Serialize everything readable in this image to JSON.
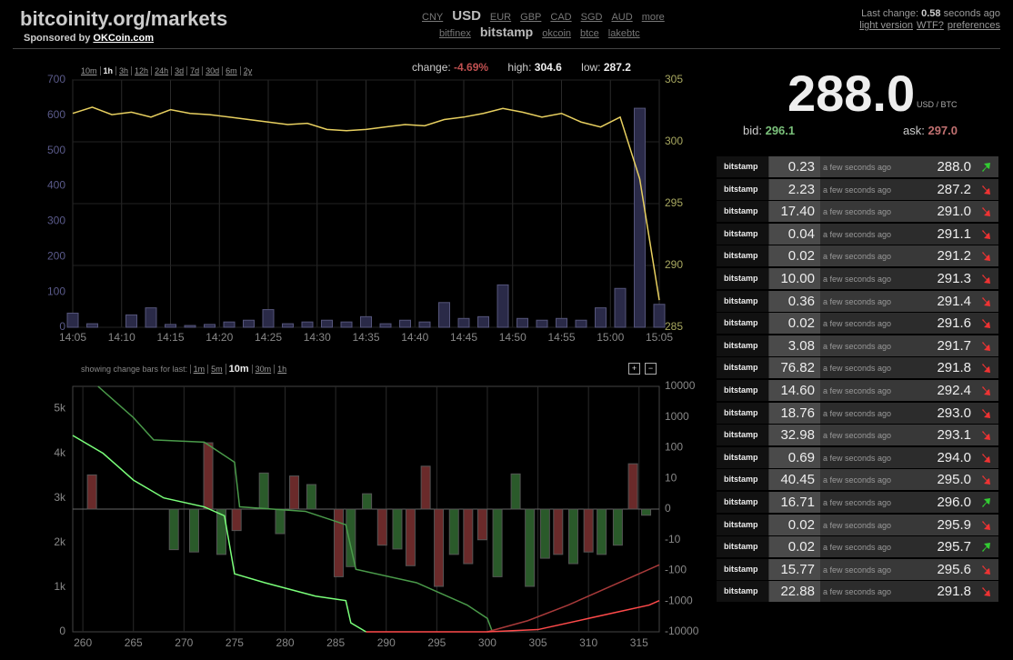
{
  "header": {
    "title": "bitcoinity.org/markets",
    "sponsor": "Sponsored by",
    "sponsor_link": "OKCoin.com"
  },
  "currencies": [
    "CNY",
    "USD",
    "EUR",
    "GBP",
    "CAD",
    "SGD",
    "AUD",
    "more"
  ],
  "active_currency": "USD",
  "exchanges": [
    "bitfinex",
    "bitstamp",
    "okcoin",
    "btce",
    "lakebtc"
  ],
  "active_exchange": "bitstamp",
  "status": {
    "label": "Last change:",
    "value": "0.58",
    "unit": "seconds ago",
    "links": [
      "light version",
      "WTF?",
      "preferences"
    ]
  },
  "timeframes": [
    "10m",
    "1h",
    "3h",
    "12h",
    "24h",
    "3d",
    "7d",
    "30d",
    "6m",
    "2y"
  ],
  "active_timeframe": "1h",
  "stats": {
    "change_label": "change:",
    "change": "-4.69%",
    "high_label": "high:",
    "high": "304.6",
    "low_label": "low:",
    "low": "287.2"
  },
  "ticker": {
    "price": "288.0",
    "unit": "USD / BTC",
    "bid_label": "bid:",
    "bid": "296.1",
    "ask_label": "ask:",
    "ask": "297.0"
  },
  "change_bars": {
    "label": "showing change bars for last:",
    "options": [
      "1m",
      "5m",
      "10m",
      "30m",
      "1h"
    ],
    "active": "10m",
    "buttons": [
      "+",
      "−"
    ]
  },
  "trades": [
    [
      "bitstamp",
      "0.23",
      "a few seconds ago",
      "288.0",
      "up"
    ],
    [
      "bitstamp",
      "2.23",
      "a few seconds ago",
      "287.2",
      "down"
    ],
    [
      "bitstamp",
      "17.40",
      "a few seconds ago",
      "291.0",
      "down"
    ],
    [
      "bitstamp",
      "0.04",
      "a few seconds ago",
      "291.1",
      "down"
    ],
    [
      "bitstamp",
      "0.02",
      "a few seconds ago",
      "291.2",
      "down"
    ],
    [
      "bitstamp",
      "10.00",
      "a few seconds ago",
      "291.3",
      "down"
    ],
    [
      "bitstamp",
      "0.36",
      "a few seconds ago",
      "291.4",
      "down"
    ],
    [
      "bitstamp",
      "0.02",
      "a few seconds ago",
      "291.6",
      "down"
    ],
    [
      "bitstamp",
      "3.08",
      "a few seconds ago",
      "291.7",
      "down"
    ],
    [
      "bitstamp",
      "76.82",
      "a few seconds ago",
      "291.8",
      "down"
    ],
    [
      "bitstamp",
      "14.60",
      "a few seconds ago",
      "292.4",
      "down"
    ],
    [
      "bitstamp",
      "18.76",
      "a few seconds ago",
      "293.0",
      "down"
    ],
    [
      "bitstamp",
      "32.98",
      "a few seconds ago",
      "293.1",
      "down"
    ],
    [
      "bitstamp",
      "0.69",
      "a few seconds ago",
      "294.0",
      "down"
    ],
    [
      "bitstamp",
      "40.45",
      "a few seconds ago",
      "295.0",
      "down"
    ],
    [
      "bitstamp",
      "16.71",
      "a few seconds ago",
      "296.0",
      "up"
    ],
    [
      "bitstamp",
      "0.02",
      "a few seconds ago",
      "295.9",
      "down"
    ],
    [
      "bitstamp",
      "0.02",
      "a few seconds ago",
      "295.7",
      "up"
    ],
    [
      "bitstamp",
      "15.77",
      "a few seconds ago",
      "295.6",
      "down"
    ],
    [
      "bitstamp",
      "22.88",
      "a few seconds ago",
      "291.8",
      "down"
    ]
  ],
  "chart_data": [
    {
      "type": "line",
      "xlim": [
        "14:05",
        "15:05"
      ],
      "x": [
        "14:05",
        "14:07",
        "14:09",
        "14:11",
        "14:13",
        "14:15",
        "14:17",
        "14:19",
        "14:21",
        "14:23",
        "14:25",
        "14:27",
        "14:29",
        "14:31",
        "14:33",
        "14:35",
        "14:37",
        "14:39",
        "14:41",
        "14:43",
        "14:45",
        "14:47",
        "14:49",
        "14:51",
        "14:53",
        "14:55",
        "14:57",
        "14:59",
        "15:01",
        "15:03",
        "15:05"
      ],
      "xticks": [
        "14:05",
        "14:10",
        "14:15",
        "14:20",
        "14:25",
        "14:30",
        "14:35",
        "14:40",
        "14:45",
        "14:50",
        "14:55",
        "15:00",
        "15:05"
      ],
      "ylim": [
        0,
        700
      ],
      "yticks": [
        0,
        100,
        200,
        300,
        400,
        500,
        600,
        700
      ],
      "y2lim": [
        285,
        305
      ],
      "y2ticks": [
        285,
        290,
        295,
        300,
        305
      ],
      "grid": true,
      "series": [
        {
          "type": "bar",
          "color": "#2a2a48",
          "values": [
            40,
            10,
            0,
            35,
            55,
            8,
            5,
            8,
            15,
            20,
            50,
            10,
            15,
            20,
            15,
            30,
            10,
            20,
            15,
            70,
            25,
            30,
            120,
            25,
            20,
            25,
            20,
            55,
            110,
            620,
            65
          ]
        },
        {
          "axis": "y2",
          "color": "#e8d060",
          "values": [
            302.3,
            302.8,
            302.2,
            302.4,
            302.0,
            302.6,
            302.3,
            302.2,
            302.0,
            301.8,
            301.6,
            301.4,
            301.5,
            301.0,
            300.9,
            301.0,
            301.2,
            301.4,
            301.3,
            301.8,
            302.0,
            302.3,
            302.7,
            302.4,
            302.0,
            302.3,
            301.6,
            301.2,
            302.0,
            297.0,
            287.2
          ]
        }
      ]
    },
    {
      "type": "depth",
      "xlim": [
        259,
        317
      ],
      "xticks": [
        260,
        265,
        270,
        275,
        280,
        285,
        290,
        295,
        300,
        305,
        310,
        315
      ],
      "ylim": [
        0,
        5500
      ],
      "yticks": [
        0,
        {
          "value": 1000,
          "label": "1k"
        },
        {
          "value": 2000,
          "label": "2k"
        },
        {
          "value": 3000,
          "label": "3k"
        },
        {
          "value": 4000,
          "label": "4k"
        },
        {
          "value": 5000,
          "label": "5k"
        }
      ],
      "y2lim": [
        -10000,
        10000
      ],
      "y2ticks": [
        10000,
        1000,
        100,
        10,
        0,
        -10,
        -100,
        -1000,
        -10000
      ],
      "y2scale": "symlog",
      "grid": true,
      "series": [
        {
          "color": "#4a9a4a",
          "x": [
            261.5,
            265,
            267,
            272,
            275,
            275.5,
            282,
            286,
            287,
            293,
            298,
            300,
            300.5
          ],
          "values": [
            5500,
            4800,
            4300,
            4250,
            3800,
            2800,
            2700,
            2400,
            1400,
            1100,
            600,
            300,
            0
          ]
        },
        {
          "color": "#7aff7a",
          "x": [
            259,
            262,
            265,
            268,
            272,
            274,
            275,
            278,
            283,
            286,
            286.5,
            288
          ],
          "values": [
            4400,
            4000,
            3400,
            3000,
            2800,
            2600,
            1300,
            1100,
            800,
            700,
            200,
            0
          ]
        },
        {
          "color": "#a83a3a",
          "x": [
            300,
            304,
            308,
            311,
            314,
            317
          ],
          "values": [
            0,
            250,
            600,
            900,
            1200,
            1500
          ]
        },
        {
          "color": "#ff4a4a",
          "x": [
            288,
            300,
            305,
            310,
            313,
            316,
            317
          ],
          "values": [
            0,
            0,
            50,
            300,
            450,
            600,
            700
          ]
        }
      ],
      "bars": {
        "axis": "y2",
        "x": [
          260.9,
          269.0,
          271.0,
          272.4,
          273.7,
          275.2,
          277.9,
          279.5,
          280.9,
          282.6,
          285.3,
          286.5,
          288.1,
          289.6,
          291.1,
          292.4,
          293.9,
          295.2,
          296.7,
          298.1,
          299.5,
          301.0,
          302.8,
          304.2,
          305.7,
          307.0,
          308.5,
          310.0,
          311.3,
          312.9,
          314.4,
          315.7
        ],
        "values": [
          13,
          -21,
          -25,
          145,
          -30,
          -7,
          15,
          -8,
          12,
          8,
          -160,
          -75,
          5,
          -15,
          -20,
          -70,
          25,
          -330,
          -30,
          -60,
          -10,
          -160,
          14,
          -330,
          -40,
          -30,
          -60,
          -25,
          -30,
          -15,
          30,
          -2
        ],
        "colors": [
          "#6a2a2a",
          "#2a5a2a",
          "#2a5a2a",
          "#6a2a2a",
          "#2a5a2a",
          "#6a2a2a",
          "#2a5a2a",
          "#2a5a2a",
          "#6a2a2a",
          "#2a5a2a",
          "#6a2a2a",
          "#2a5a2a",
          "#2a5a2a",
          "#6a2a2a",
          "#2a5a2a",
          "#6a2a2a",
          "#6a2a2a",
          "#6a2a2a",
          "#2a5a2a",
          "#6a2a2a",
          "#6a2a2a",
          "#2a5a2a",
          "#2a5a2a",
          "#2a5a2a",
          "#2a5a2a",
          "#6a2a2a",
          "#2a5a2a",
          "#6a2a2a",
          "#2a5a2a",
          "#2a5a2a",
          "#6a2a2a",
          "#2a5a2a"
        ]
      }
    }
  ]
}
